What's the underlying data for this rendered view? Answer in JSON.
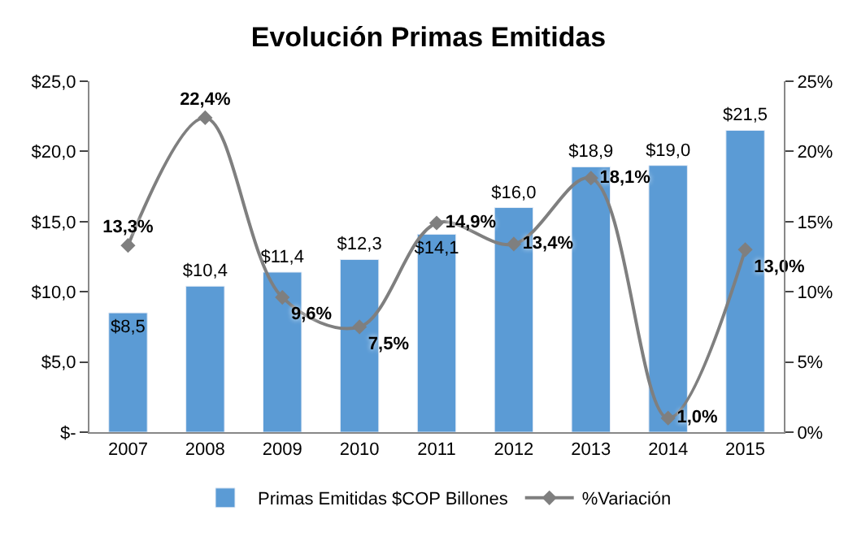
{
  "chart_data": {
    "type": "bar",
    "title": "Evolución Primas Emitidas",
    "categories": [
      "2007",
      "2008",
      "2009",
      "2010",
      "2011",
      "2012",
      "2013",
      "2014",
      "2015"
    ],
    "series": [
      {
        "name": "Primas Emitidas $COP Billones",
        "color": "#5b9bd5",
        "values": [
          8.5,
          10.4,
          11.4,
          12.3,
          14.1,
          16.0,
          18.9,
          19.0,
          21.5
        ],
        "value_labels": [
          "$8,5",
          "$10,4",
          "$11,4",
          "$12,3",
          "$14,1",
          "$16,0",
          "$18,9",
          "$19,0",
          "$21,5"
        ]
      },
      {
        "name": "%Variación",
        "type": "line",
        "axis": "y2",
        "color": "#7f7f7f",
        "marker": "diamond",
        "values": [
          13.3,
          22.4,
          9.6,
          7.5,
          14.9,
          13.4,
          18.1,
          1.0,
          13.0
        ],
        "value_labels": [
          "13,3%",
          "22,4%",
          "9,6%",
          "7,5%",
          "14,9%",
          "13,4%",
          "18,1%",
          "1,0%",
          "13,0%"
        ]
      }
    ],
    "ylim": [
      0,
      25
    ],
    "yticks": [
      {
        "value": 0,
        "label": "$-"
      },
      {
        "value": 5,
        "label": "$5,0"
      },
      {
        "value": 10,
        "label": "$10,0"
      },
      {
        "value": 15,
        "label": "$15,0"
      },
      {
        "value": 20,
        "label": "$20,0"
      },
      {
        "value": 25,
        "label": "$25,0"
      }
    ],
    "y2lim": [
      0,
      25
    ],
    "y2ticks": [
      {
        "value": 0,
        "label": "0%"
      },
      {
        "value": 5,
        "label": "5%"
      },
      {
        "value": 10,
        "label": "10%"
      },
      {
        "value": 15,
        "label": "15%"
      },
      {
        "value": 20,
        "label": "20%"
      },
      {
        "value": 25,
        "label": "25%"
      }
    ],
    "legend": "bottom"
  }
}
